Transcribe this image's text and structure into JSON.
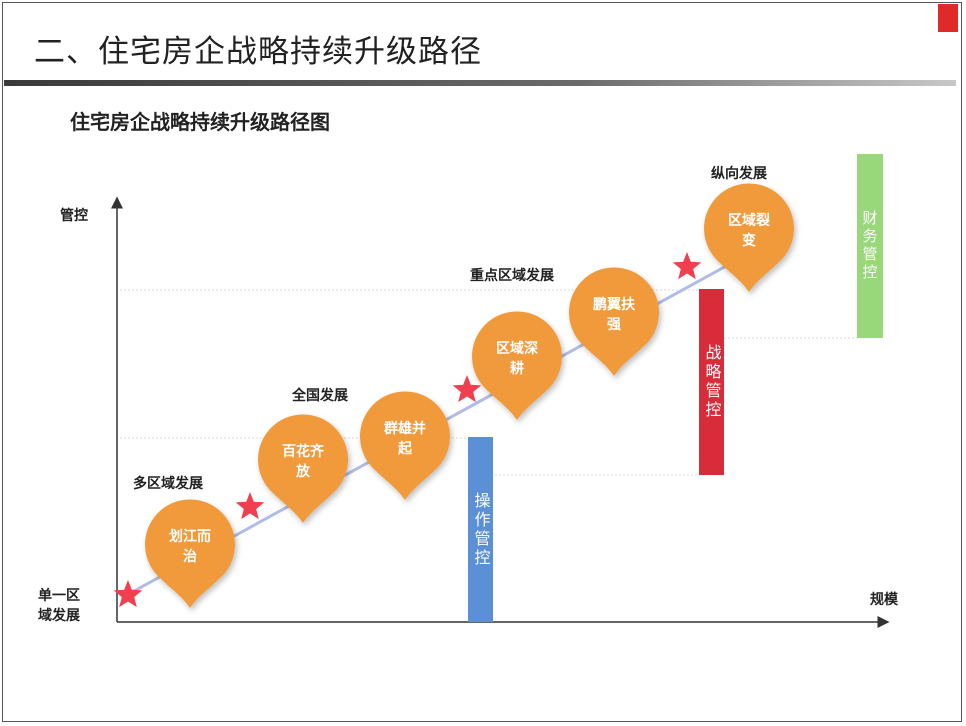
{
  "slide": {
    "title": "二、住宅房企战略持续升级路径"
  },
  "diagram": {
    "title": "住宅房企战略持续升级路径图",
    "y_axis_label": "管控",
    "x_axis_label": "规模",
    "origin_label": "单一区\n域发展",
    "stages": [
      {
        "label": "多区域发展"
      },
      {
        "label": "全国发展"
      },
      {
        "label": "重点区域发展"
      },
      {
        "label": "纵向发展"
      }
    ],
    "bubbles": [
      {
        "line1": "划江而",
        "line2": "治"
      },
      {
        "line1": "百花齐",
        "line2": "放"
      },
      {
        "line1": "群雄并",
        "line2": "起"
      },
      {
        "line1": "区域深",
        "line2": "耕"
      },
      {
        "line1": "鹏翼扶",
        "line2": "强"
      },
      {
        "line1": "区域裂",
        "line2": "变"
      }
    ],
    "control_bars": [
      {
        "label": "操作管控",
        "color": "#5b8fd6"
      },
      {
        "label": "战略管控",
        "color": "#d82c3a"
      },
      {
        "label": "财务管控",
        "color": "#98d77a"
      }
    ],
    "colors": {
      "bubble": "#f09a3a",
      "star": "#f04050",
      "arrow": "#b0bce8",
      "axis": "#333333"
    }
  }
}
